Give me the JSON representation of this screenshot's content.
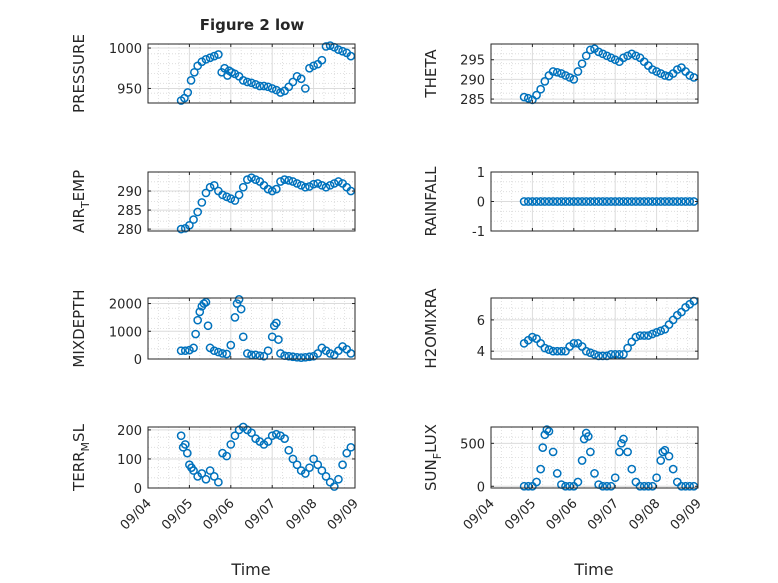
{
  "figure": {
    "title": "Figure 2 low",
    "xlabel": "Time",
    "marker_color": "#0072BD",
    "marker": "open-circle",
    "grid": "on, dotted minor grid"
  },
  "chart_data": [
    {
      "type": "scatter",
      "ylabel": "PRESSURE",
      "xlim": [
        "09/04",
        "09/09"
      ],
      "ylim": [
        932,
        1005
      ],
      "yticks": [
        950,
        1000
      ],
      "ytick_labels": [
        "950",
        "1000"
      ],
      "x": [
        0.8,
        0.88,
        0.96,
        1.04,
        1.12,
        1.2,
        1.3,
        1.4,
        1.5,
        1.6,
        1.7,
        1.78,
        1.85,
        1.92,
        1.96,
        2.02,
        2.1,
        2.2,
        2.3,
        2.4,
        2.5,
        2.6,
        2.7,
        2.8,
        2.9,
        3.0,
        3.1,
        3.2,
        3.3,
        3.4,
        3.5,
        3.6,
        3.7,
        3.8,
        3.9,
        4.0,
        4.1,
        4.2,
        4.3,
        4.4,
        4.5,
        4.6,
        4.7,
        4.8,
        4.9
      ],
      "values": [
        935,
        938,
        945,
        960,
        970,
        978,
        983,
        986,
        988,
        990,
        992,
        970,
        975,
        966,
        972,
        970,
        968,
        965,
        960,
        958,
        957,
        955,
        953,
        953,
        952,
        950,
        948,
        945,
        947,
        952,
        958,
        965,
        962,
        950,
        975,
        978,
        980,
        985,
        1002,
        1003,
        1001,
        998,
        996,
        994,
        990
      ]
    },
    {
      "type": "scatter",
      "ylabel": "THETA",
      "xlim": [
        "09/04",
        "09/09"
      ],
      "ylim": [
        284,
        299
      ],
      "yticks": [
        285,
        290,
        295
      ],
      "ytick_labels": [
        "285",
        "290",
        "295"
      ],
      "x": [
        0.8,
        0.9,
        1.0,
        1.1,
        1.2,
        1.3,
        1.4,
        1.5,
        1.6,
        1.7,
        1.8,
        1.9,
        2.0,
        2.1,
        2.2,
        2.3,
        2.4,
        2.5,
        2.6,
        2.7,
        2.8,
        2.9,
        3.0,
        3.1,
        3.2,
        3.3,
        3.4,
        3.5,
        3.6,
        3.7,
        3.8,
        3.9,
        4.0,
        4.1,
        4.2,
        4.3,
        4.4,
        4.5,
        4.6,
        4.7,
        4.8,
        4.9
      ],
      "values": [
        285.5,
        285.2,
        284.8,
        286,
        287.5,
        289.5,
        291,
        292,
        291.8,
        291.5,
        291,
        290.5,
        290,
        292,
        294,
        296,
        297.5,
        297.8,
        297,
        296.5,
        296,
        295.5,
        295,
        294.5,
        295.5,
        296,
        296.5,
        296,
        295.5,
        294.5,
        293.5,
        292.5,
        292,
        291.5,
        291,
        290.8,
        291.5,
        292.5,
        293,
        292,
        291,
        290.5
      ]
    },
    {
      "type": "scatter",
      "ylabel": "AIR_TEMP",
      "xlim": [
        "09/04",
        "09/09"
      ],
      "ylim": [
        279.5,
        295
      ],
      "yticks": [
        280,
        285,
        290
      ],
      "ytick_labels": [
        "280",
        "285",
        "290"
      ],
      "x": [
        0.8,
        0.9,
        1.0,
        1.1,
        1.2,
        1.3,
        1.4,
        1.5,
        1.6,
        1.7,
        1.8,
        1.9,
        2.0,
        2.1,
        2.2,
        2.3,
        2.4,
        2.5,
        2.6,
        2.7,
        2.8,
        2.9,
        3.0,
        3.1,
        3.2,
        3.3,
        3.4,
        3.5,
        3.6,
        3.7,
        3.8,
        3.9,
        4.0,
        4.1,
        4.2,
        4.3,
        4.4,
        4.5,
        4.6,
        4.7,
        4.8,
        4.9
      ],
      "values": [
        280,
        280.2,
        281,
        282.5,
        284.5,
        287,
        289.5,
        291,
        291.5,
        290,
        289,
        288.5,
        288,
        287.5,
        289,
        291,
        293,
        293.5,
        293,
        292.5,
        291.5,
        290.5,
        290,
        290.5,
        292.5,
        293,
        292.8,
        292.5,
        292,
        291.5,
        291,
        291.2,
        291.8,
        292,
        291.5,
        291,
        291.5,
        292,
        292.5,
        292,
        291,
        290
      ]
    },
    {
      "type": "scatter",
      "ylabel": "RAINFALL",
      "xlim": [
        "09/04",
        "09/09"
      ],
      "ylim": [
        -1,
        1
      ],
      "yticks": [
        -1,
        0,
        1
      ],
      "ytick_labels": [
        "-1",
        "0",
        "1"
      ],
      "x": [
        0.8,
        0.9,
        1.0,
        1.1,
        1.2,
        1.3,
        1.4,
        1.5,
        1.6,
        1.7,
        1.8,
        1.9,
        2.0,
        2.1,
        2.2,
        2.3,
        2.4,
        2.5,
        2.6,
        2.7,
        2.8,
        2.9,
        3.0,
        3.1,
        3.2,
        3.3,
        3.4,
        3.5,
        3.6,
        3.7,
        3.8,
        3.9,
        4.0,
        4.1,
        4.2,
        4.3,
        4.4,
        4.5,
        4.6,
        4.7,
        4.8,
        4.9
      ],
      "values": [
        0,
        0,
        0,
        0,
        0,
        0,
        0,
        0,
        0,
        0,
        0,
        0,
        0,
        0,
        0,
        0,
        0,
        0,
        0,
        0,
        0,
        0,
        0,
        0,
        0,
        0,
        0,
        0,
        0,
        0,
        0,
        0,
        0,
        0,
        0,
        0,
        0,
        0,
        0,
        0,
        0,
        0
      ]
    },
    {
      "type": "scatter",
      "ylabel": "MIXDEPTH",
      "xlim": [
        "09/04",
        "09/09"
      ],
      "ylim": [
        0,
        2200
      ],
      "yticks": [
        0,
        1000,
        2000
      ],
      "ytick_labels": [
        "0",
        "1000",
        "2000"
      ],
      "x": [
        0.8,
        0.9,
        1.0,
        1.1,
        1.15,
        1.2,
        1.25,
        1.3,
        1.35,
        1.4,
        1.45,
        1.5,
        1.6,
        1.7,
        1.8,
        1.9,
        2.0,
        2.1,
        2.15,
        2.2,
        2.25,
        2.3,
        2.4,
        2.5,
        2.6,
        2.7,
        2.8,
        2.9,
        3.0,
        3.05,
        3.1,
        3.15,
        3.2,
        3.3,
        3.4,
        3.5,
        3.6,
        3.7,
        3.8,
        3.9,
        4.0,
        4.1,
        4.2,
        4.3,
        4.4,
        4.5,
        4.6,
        4.7,
        4.8,
        4.9
      ],
      "values": [
        300,
        300,
        320,
        400,
        900,
        1400,
        1700,
        1900,
        2000,
        2050,
        1200,
        400,
        300,
        250,
        200,
        180,
        500,
        1500,
        2000,
        2150,
        1800,
        800,
        200,
        150,
        150,
        120,
        100,
        300,
        800,
        1200,
        1300,
        700,
        200,
        120,
        100,
        80,
        60,
        50,
        60,
        80,
        100,
        200,
        400,
        300,
        200,
        150,
        300,
        450,
        350,
        200
      ]
    },
    {
      "type": "scatter",
      "ylabel": "H2OMIXRA",
      "xlim": [
        "09/04",
        "09/09"
      ],
      "ylim": [
        3.5,
        7.4
      ],
      "yticks": [
        4,
        6
      ],
      "ytick_labels": [
        "4",
        "6"
      ],
      "x": [
        0.8,
        0.9,
        1.0,
        1.1,
        1.2,
        1.3,
        1.4,
        1.5,
        1.6,
        1.7,
        1.8,
        1.9,
        2.0,
        2.1,
        2.2,
        2.3,
        2.4,
        2.5,
        2.6,
        2.7,
        2.8,
        2.9,
        3.0,
        3.1,
        3.2,
        3.3,
        3.4,
        3.5,
        3.6,
        3.7,
        3.8,
        3.9,
        4.0,
        4.1,
        4.2,
        4.3,
        4.4,
        4.5,
        4.6,
        4.7,
        4.8,
        4.9
      ],
      "values": [
        4.5,
        4.7,
        4.9,
        4.8,
        4.5,
        4.2,
        4.1,
        4.0,
        4.0,
        4.0,
        4.0,
        4.3,
        4.5,
        4.5,
        4.3,
        4.0,
        3.9,
        3.8,
        3.7,
        3.7,
        3.7,
        3.8,
        3.8,
        3.8,
        3.8,
        4.2,
        4.6,
        4.9,
        5.0,
        5.0,
        5.0,
        5.1,
        5.2,
        5.3,
        5.4,
        5.7,
        6.0,
        6.3,
        6.5,
        6.8,
        7.0,
        7.2
      ]
    },
    {
      "type": "scatter",
      "ylabel": "TERR_MSL",
      "xlim": [
        "09/04",
        "09/09"
      ],
      "ylim": [
        0,
        210
      ],
      "yticks": [
        0,
        100,
        200
      ],
      "ytick_labels": [
        "0",
        "100",
        "200"
      ],
      "x": [
        0.8,
        0.85,
        0.9,
        0.95,
        1.0,
        1.05,
        1.1,
        1.2,
        1.3,
        1.4,
        1.5,
        1.6,
        1.7,
        1.8,
        1.9,
        2.0,
        2.1,
        2.2,
        2.3,
        2.4,
        2.5,
        2.6,
        2.7,
        2.8,
        2.9,
        3.0,
        3.1,
        3.2,
        3.3,
        3.4,
        3.5,
        3.6,
        3.7,
        3.8,
        3.9,
        4.0,
        4.1,
        4.2,
        4.3,
        4.4,
        4.5,
        4.6,
        4.7,
        4.8,
        4.9
      ],
      "values": [
        180,
        140,
        150,
        120,
        80,
        70,
        60,
        40,
        50,
        30,
        60,
        40,
        20,
        120,
        110,
        150,
        180,
        200,
        210,
        200,
        190,
        170,
        160,
        150,
        160,
        180,
        185,
        180,
        170,
        130,
        100,
        80,
        60,
        50,
        70,
        100,
        80,
        60,
        40,
        20,
        5,
        30,
        80,
        120,
        140
      ]
    },
    {
      "type": "scatter",
      "ylabel": "SUN_FLUX",
      "xlim": [
        "09/04",
        "09/09"
      ],
      "ylim": [
        -20,
        690
      ],
      "yticks": [
        0,
        500
      ],
      "ytick_labels": [
        "0",
        "500"
      ],
      "x": [
        0.8,
        0.9,
        1.0,
        1.1,
        1.2,
        1.25,
        1.3,
        1.35,
        1.4,
        1.5,
        1.6,
        1.7,
        1.8,
        1.9,
        2.0,
        2.1,
        2.2,
        2.25,
        2.3,
        2.35,
        2.4,
        2.5,
        2.6,
        2.7,
        2.8,
        2.9,
        3.0,
        3.1,
        3.15,
        3.2,
        3.3,
        3.4,
        3.5,
        3.6,
        3.7,
        3.8,
        3.9,
        4.0,
        4.1,
        4.15,
        4.2,
        4.3,
        4.4,
        4.5,
        4.6,
        4.7,
        4.8,
        4.9
      ],
      "values": [
        0,
        0,
        0,
        50,
        200,
        450,
        600,
        660,
        640,
        400,
        150,
        20,
        0,
        0,
        0,
        50,
        300,
        550,
        620,
        580,
        400,
        150,
        20,
        0,
        0,
        0,
        100,
        400,
        500,
        550,
        400,
        200,
        50,
        0,
        0,
        0,
        0,
        100,
        300,
        400,
        420,
        350,
        200,
        50,
        0,
        0,
        0,
        0
      ]
    }
  ],
  "xtick_labels": [
    "09/04",
    "09/05",
    "09/06",
    "09/07",
    "09/08",
    "09/09"
  ]
}
